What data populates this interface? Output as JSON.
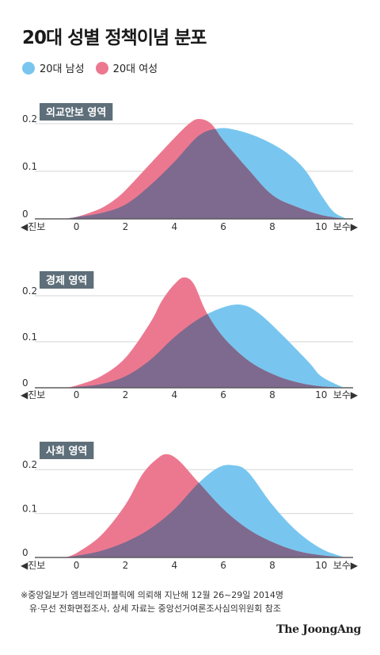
{
  "title": "20대 성별 정책이념 분포",
  "colors": {
    "male": "#78C6EF",
    "female": "#EC7890",
    "overlap": "#7E6A8E",
    "panel_label_bg": "#5E6F7A"
  },
  "legend": [
    {
      "label": "20대 남성",
      "color": "#78C6EF"
    },
    {
      "label": "20대 여성",
      "color": "#EC7890"
    }
  ],
  "chart_data": [
    {
      "type": "area",
      "panel_label": "외교안보 영역",
      "x_ticks": [
        "0",
        "2",
        "4",
        "6",
        "8",
        "10"
      ],
      "y_ticks": [
        "0",
        "0.1",
        "0.2"
      ],
      "ylim": [
        0,
        0.24
      ],
      "xlim": [
        -1.7,
        11.3
      ],
      "left_label": "◀진보",
      "right_label": "보수▶",
      "series": [
        {
          "name": "20대 남성",
          "points": [
            [
              -0.5,
              0
            ],
            [
              0,
              0.004
            ],
            [
              1,
              0.012
            ],
            [
              2,
              0.03
            ],
            [
              3,
              0.07
            ],
            [
              4,
              0.12
            ],
            [
              5,
              0.175
            ],
            [
              5.8,
              0.19
            ],
            [
              6.5,
              0.187
            ],
            [
              7.5,
              0.17
            ],
            [
              8.5,
              0.142
            ],
            [
              9.3,
              0.105
            ],
            [
              10,
              0.05
            ],
            [
              10.5,
              0.015
            ],
            [
              11,
              0.001
            ]
          ]
        },
        {
          "name": "20대 여성",
          "points": [
            [
              -0.5,
              0
            ],
            [
              0,
              0.004
            ],
            [
              0.5,
              0.012
            ],
            [
              1,
              0.022
            ],
            [
              1.5,
              0.038
            ],
            [
              2,
              0.06
            ],
            [
              3,
              0.115
            ],
            [
              4,
              0.17
            ],
            [
              4.6,
              0.2
            ],
            [
              5,
              0.21
            ],
            [
              5.5,
              0.2
            ],
            [
              6,
              0.165
            ],
            [
              7,
              0.105
            ],
            [
              8,
              0.05
            ],
            [
              9,
              0.025
            ],
            [
              10,
              0.008
            ],
            [
              11,
              0
            ]
          ]
        }
      ]
    },
    {
      "type": "area",
      "panel_label": "경제 영역",
      "x_ticks": [
        "0",
        "2",
        "4",
        "6",
        "8",
        "10"
      ],
      "y_ticks": [
        "0",
        "0.1",
        "0.2"
      ],
      "ylim": [
        0,
        0.25
      ],
      "xlim": [
        -1.7,
        11.3
      ],
      "left_label": "◀진보",
      "right_label": "보수▶",
      "series": [
        {
          "name": "20대 남성",
          "points": [
            [
              -0.5,
              0
            ],
            [
              0,
              0.002
            ],
            [
              1,
              0.008
            ],
            [
              2,
              0.025
            ],
            [
              3,
              0.06
            ],
            [
              4,
              0.11
            ],
            [
              5,
              0.15
            ],
            [
              6,
              0.175
            ],
            [
              6.8,
              0.18
            ],
            [
              7.5,
              0.16
            ],
            [
              8.5,
              0.11
            ],
            [
              9.5,
              0.055
            ],
            [
              10,
              0.025
            ],
            [
              10.8,
              0.003
            ],
            [
              11,
              0
            ]
          ]
        },
        {
          "name": "20대 여성",
          "points": [
            [
              -0.5,
              0
            ],
            [
              0,
              0.005
            ],
            [
              1,
              0.025
            ],
            [
              2,
              0.065
            ],
            [
              3,
              0.14
            ],
            [
              3.5,
              0.19
            ],
            [
              4,
              0.225
            ],
            [
              4.4,
              0.24
            ],
            [
              4.8,
              0.225
            ],
            [
              5.3,
              0.165
            ],
            [
              6,
              0.11
            ],
            [
              7,
              0.06
            ],
            [
              8,
              0.03
            ],
            [
              9,
              0.012
            ],
            [
              10,
              0.003
            ],
            [
              11,
              0
            ]
          ]
        }
      ]
    },
    {
      "type": "area",
      "panel_label": "사회 영역",
      "x_ticks": [
        "0",
        "2",
        "4",
        "6",
        "8",
        "10"
      ],
      "y_ticks": [
        "0",
        "0.1",
        "0.2"
      ],
      "ylim": [
        0,
        0.26
      ],
      "xlim": [
        -1.7,
        11.3
      ],
      "left_label": "◀진보",
      "right_label": "보수▶",
      "series": [
        {
          "name": "20대 남성",
          "points": [
            [
              -0.5,
              0
            ],
            [
              0,
              0.004
            ],
            [
              1,
              0.015
            ],
            [
              2,
              0.035
            ],
            [
              3,
              0.065
            ],
            [
              4,
              0.11
            ],
            [
              5,
              0.17
            ],
            [
              5.8,
              0.205
            ],
            [
              6.4,
              0.21
            ],
            [
              7,
              0.195
            ],
            [
              8,
              0.12
            ],
            [
              9,
              0.06
            ],
            [
              10,
              0.02
            ],
            [
              10.8,
              0.003
            ],
            [
              11,
              0
            ]
          ]
        },
        {
          "name": "20대 여성",
          "points": [
            [
              -0.5,
              0
            ],
            [
              0,
              0.01
            ],
            [
              1,
              0.05
            ],
            [
              2,
              0.12
            ],
            [
              2.7,
              0.19
            ],
            [
              3.3,
              0.225
            ],
            [
              3.7,
              0.235
            ],
            [
              4.2,
              0.22
            ],
            [
              5,
              0.17
            ],
            [
              6,
              0.11
            ],
            [
              7,
              0.065
            ],
            [
              8,
              0.035
            ],
            [
              9,
              0.015
            ],
            [
              10,
              0.005
            ],
            [
              11,
              0
            ]
          ]
        }
      ]
    }
  ],
  "footnote": [
    "※중앙일보가 엠브레인퍼블릭에 의뢰해 지난해 12월 26~29일 2014명",
    "유·무선 전화면접조사, 상세 자료는 중앙선거여론조사심의위원회 참조"
  ],
  "brand": "The JoongAng"
}
